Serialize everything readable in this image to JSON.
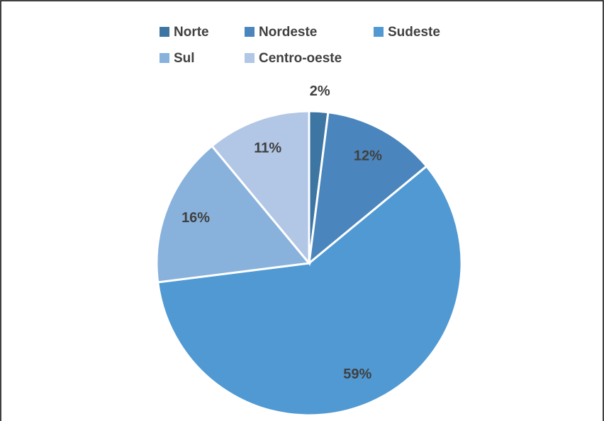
{
  "chart_data": {
    "type": "pie",
    "categories": [
      "Norte",
      "Nordeste",
      "Sudeste",
      "Sul",
      "Centro-oeste"
    ],
    "values": [
      2,
      12,
      59,
      16,
      11
    ],
    "value_labels": [
      "2%",
      "12%",
      "59%",
      "16%",
      "11%"
    ],
    "colors": [
      "#3d75a3",
      "#4a86bd",
      "#5099d3",
      "#88b2dc",
      "#b1c7e5"
    ],
    "legend": "top"
  }
}
